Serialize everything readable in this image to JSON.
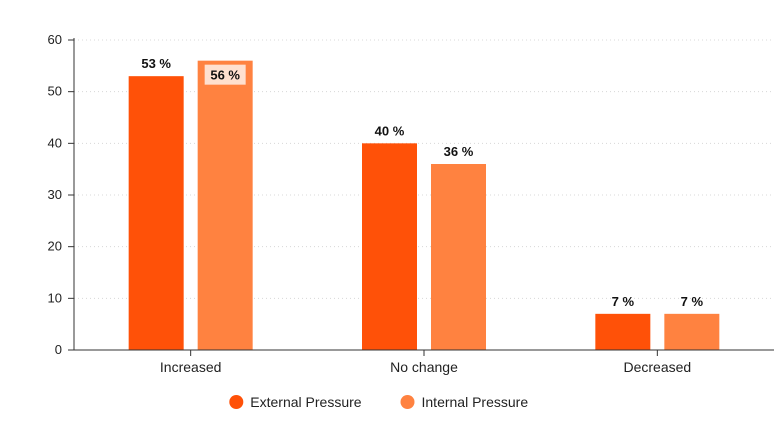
{
  "chart_data": {
    "type": "bar",
    "title": "",
    "xlabel": "",
    "ylabel": "",
    "ylim": [
      0,
      60
    ],
    "yticks": [
      0,
      10,
      20,
      30,
      40,
      50,
      60
    ],
    "grid": true,
    "legend_position": "bottom",
    "value_suffix": " %",
    "categories": [
      "Increased",
      "No change",
      "Decreased"
    ],
    "series": [
      {
        "name": "External Pressure",
        "color": "#FF5108",
        "values": [
          53,
          40,
          7
        ]
      },
      {
        "name": "Internal Pressure",
        "color": "#FF8240",
        "values": [
          56,
          36,
          7
        ]
      }
    ]
  }
}
